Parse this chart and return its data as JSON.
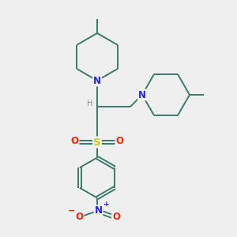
{
  "bg_color": "#efefef",
  "bond_color": "#3a7a6a",
  "N_color": "#2222ff",
  "S_color": "#cccc00",
  "O_color": "#ff2200",
  "H_color": "#888888",
  "line_width": 1.4,
  "fig_size": [
    3.0,
    3.0
  ],
  "dpi": 100,
  "xlim": [
    0,
    10
  ],
  "ylim": [
    0,
    10
  ]
}
